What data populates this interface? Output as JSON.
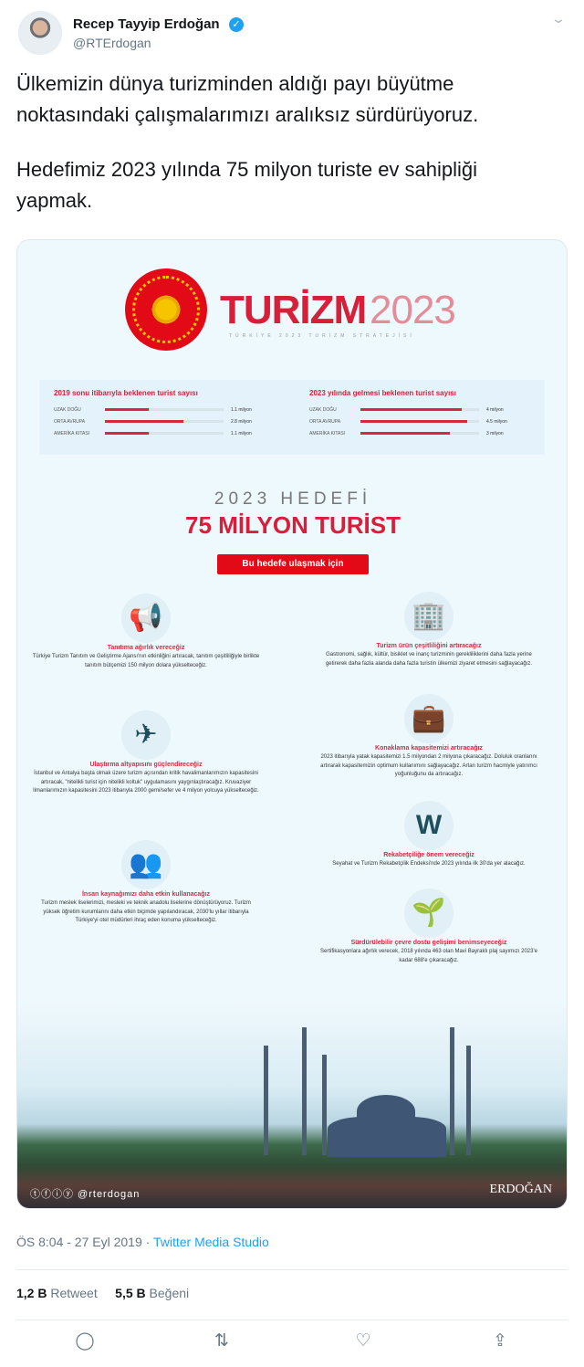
{
  "author": {
    "name": "Recep Tayyip Erdoğan",
    "handle": "@RTErdogan",
    "verified": true
  },
  "tweet": {
    "lines": [
      "Ülkemizin dünya turizminden aldığı payı büyütme",
      "noktasındaki çalışmalarımızı aralıksız sürdürüyoruz.",
      "Hedefimiz 2023 yılında 75 milyon turiste ev sahipliği",
      "yapmak."
    ]
  },
  "infographic": {
    "logo_word": "TURİZM",
    "logo_year": "2023",
    "logo_sub": "TÜRKİYE 2023 TURİZM STRATEJİSİ",
    "stats": [
      {
        "title": "2019 sonu itibarıyla beklenen turist sayısı",
        "rows": [
          {
            "label": "UZAK DOĞU",
            "value": "1.1 milyon",
            "fraction": 0.37
          },
          {
            "label": "ORTA AVRUPA",
            "value": "2.8 milyon",
            "fraction": 0.66
          },
          {
            "label": "AMERİKA KITASI",
            "value": "1.1 milyon",
            "fraction": 0.37
          }
        ]
      },
      {
        "title": "2023 yılında gelmesi beklenen turist sayısı",
        "rows": [
          {
            "label": "UZAK DOĞU",
            "value": "4 milyon",
            "fraction": 0.85
          },
          {
            "label": "ORTA AVRUPA",
            "value": "4.5 milyon",
            "fraction": 0.9
          },
          {
            "label": "AMERİKA KITASI",
            "value": "3 milyon",
            "fraction": 0.75
          }
        ]
      }
    ],
    "hedef": "2023 HEDEFİ",
    "target": "75 MİLYON TURİST",
    "badge": "Bu hedefe ulaşmak için",
    "left": [
      {
        "icon": "megaphone-icon",
        "glyph": "📢",
        "title": "Tanıtıma ağırlık vereceğiz",
        "body": "Türkiye Turizm Tanıtım ve Geliştirme Ajansı'nın etkinliğini artıracak, tanıtım çeşitliliğiyle birlikte tanıtım bütçemizi 150 milyon dolara yükselteceğiz."
      },
      {
        "icon": "airplane-icon",
        "glyph": "✈",
        "title": "Ulaştırma altyapısını güçlendireceğiz",
        "body": "İstanbul ve Antalya başta olmak üzere turizm açısından kritik havalimanlarımızın kapasitesini artıracak, \"nitelikli turist için nitelikli koltuk\" uygulamasını yaygınlaştıracağız. Kruvaziyer limanlarımızın kapasitesini 2023 itibarıyla 2000 gemi/sefer ve 4 milyon yolcuya yükselteceğiz."
      },
      {
        "icon": "people-icon",
        "glyph": "👥",
        "title": "İnsan kaynağımızı daha etkin kullanacağız",
        "body": "Turizm meslek liselerimizi, mesleki ve teknik anadolu liselerine dönüştürüyoruz. Turizm yüksek öğretim kurumlarını daha etkin biçimde yapılandıracak, 2030'lu yıllar itibarıyla Türkiye'yi otel müdürleri ihraç eden konuma yükselteceğiz."
      }
    ],
    "right": [
      {
        "icon": "building-icon",
        "glyph": "🏢",
        "title": "Turizm ürün çeşitliliğini artıracağız",
        "body": "Gastronomi, sağlık, kültür, bisiklet ve inanç turizminin gerekliliklerini daha fazla yerine getirerek daha fazla alanda daha fazla turistin ülkemizi ziyaret etmesini sağlayacağız."
      },
      {
        "icon": "suitcase-icon",
        "glyph": "💼",
        "title": "Konaklama kapasitemizi artıracağız",
        "body": "2023 itibarıyla yatak kapasitemizi 1.5 milyondan 2 milyona çıkaracağız. Doluluk oranlarını artırarak kapasitemizin optimum kullanımını sağlayacağız. Artan turizm hacmiyle yatırımcı yoğunluğunu da artıracağız."
      },
      {
        "icon": "competition-icon",
        "glyph": "W",
        "title": "Rekabetçiliğe önem vereceğiz",
        "body": "Seyahat ve Turizm Rekabetçilik Endeksi'nde 2023 yılında ilk 30'da yer alacağız."
      },
      {
        "icon": "plant-hand-icon",
        "glyph": "🌱",
        "title": "Sürdürülebilir çevre dostu gelişimi benimseyeceğiz",
        "body": "Sertifikasyonlara ağırlık verecek, 2018 yılında 463 olan Mavi Bayraklı plaj sayımızı 2023'e kadar 688'e çıkaracağız."
      }
    ],
    "social": "ⓣⓕⓘⓨ @rterdogan",
    "signature": "ERDOĞAN"
  },
  "meta": {
    "time": "ÖS 8:04 - 27 Eyl 2019 · ",
    "source": "Twitter Media Studio"
  },
  "counts": {
    "retweets": "1,2 B",
    "retweet_label": "Retweet",
    "likes": "5,5 B",
    "like_label": "Beğeni"
  },
  "colors": {
    "accent": "#1da1f2",
    "brand_red": "#d71f3a",
    "icon_teal": "#1e4f5c"
  }
}
